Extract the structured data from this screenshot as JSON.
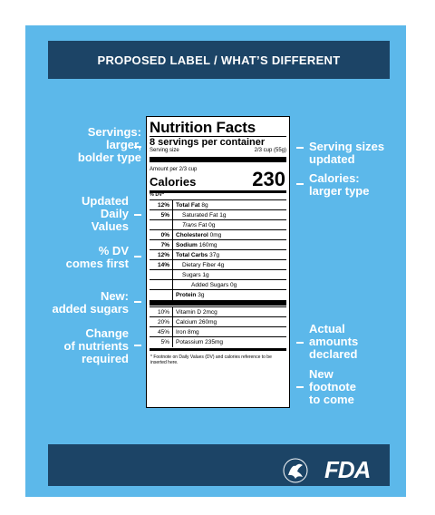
{
  "banner": {
    "title": "PROPOSED LABEL / WHAT’S DIFFERENT"
  },
  "callouts_left": [
    {
      "text": "Servings:\nlarger,\nbolder type"
    },
    {
      "text": "Updated\nDaily\nValues"
    },
    {
      "text": "% DV\ncomes first"
    },
    {
      "text": "New:\nadded sugars"
    },
    {
      "text": "Change\nof nutrients\nrequired"
    }
  ],
  "callouts_right": [
    {
      "text": "Serving sizes\nupdated"
    },
    {
      "text": "Calories:\nlarger type"
    },
    {
      "text": "Actual\namounts\ndeclared"
    },
    {
      "text": "New\nfootnote\nto come"
    }
  ],
  "label": {
    "title": "Nutrition Facts",
    "servings": "8 servings per container",
    "serving_size_label": "Serving size",
    "serving_size_value": "2/3 cup (55g)",
    "amount_per": "Amount per 2/3 cup",
    "calories_label": "Calories",
    "calories_value": "230",
    "dv_header": "% DV*",
    "rows": [
      {
        "pct": "12%",
        "name": "Total Fat",
        "amount": "8g"
      },
      {
        "pct": "5%",
        "name": "Saturated Fat",
        "amount": "1g"
      },
      {
        "pct": "",
        "name": "Trans",
        "name2": "Fat",
        "amount": "0g"
      },
      {
        "pct": "0%",
        "name": "Cholesterol",
        "amount": "0mg"
      },
      {
        "pct": "7%",
        "name": "Sodium",
        "amount": "160mg"
      },
      {
        "pct": "12%",
        "name": "Total Carbs",
        "amount": "37g"
      },
      {
        "pct": "14%",
        "name": "Dietary Fiber",
        "amount": "4g"
      },
      {
        "pct": "",
        "name": "Sugars",
        "amount": "1g"
      },
      {
        "pct": "",
        "name": "Added Sugars",
        "amount": "0g"
      },
      {
        "pct": "",
        "name": "Protein",
        "amount": "3g"
      }
    ],
    "vitamins": [
      {
        "pct": "10%",
        "name": "Vitamin D",
        "amount": "2mcg"
      },
      {
        "pct": "20%",
        "name": "Calcium",
        "amount": "260mg"
      },
      {
        "pct": "45%",
        "name": "Iron",
        "amount": "8mg"
      },
      {
        "pct": "5%",
        "name": "Potassium",
        "amount": "235mg"
      }
    ],
    "footnote": "* Footnote on Daily Values (DV) and calories reference to be inserted here."
  },
  "footer": {
    "logo_text": "FDA",
    "seal_icon": "hhs-eagle-icon"
  },
  "colors": {
    "background": "#5cb8ea",
    "banner": "#1c4466"
  }
}
